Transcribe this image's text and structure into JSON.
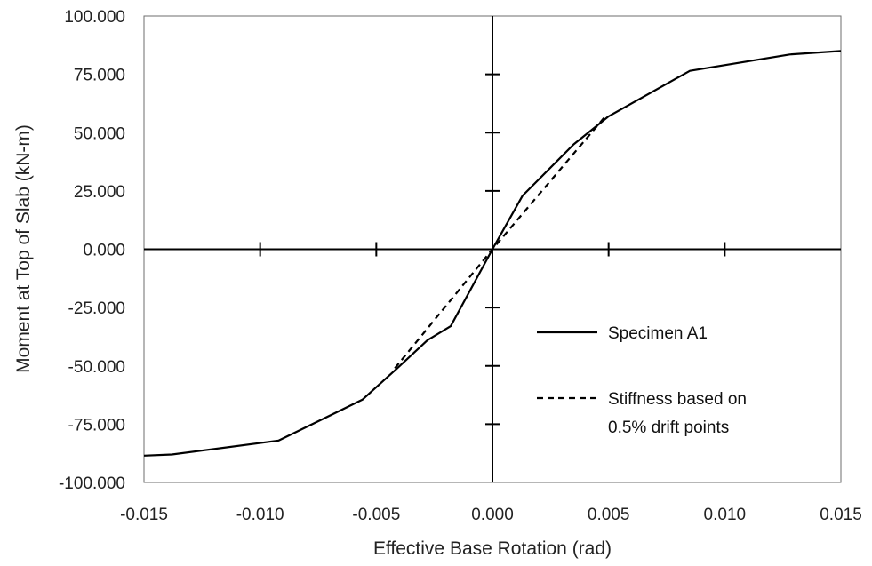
{
  "chart_data": {
    "type": "line",
    "title": "",
    "xlabel": "Effective Base Rotation (rad)",
    "ylabel": "Moment at Top of Slab (kN-m)",
    "xlim": [
      -0.015,
      0.015
    ],
    "ylim": [
      -100,
      100
    ],
    "x_ticks": [
      -0.015,
      -0.01,
      -0.005,
      0.0,
      0.005,
      0.01,
      0.015
    ],
    "x_tick_labels": [
      "-0.015",
      "-0.010",
      "-0.005",
      "0.000",
      "0.005",
      "0.010",
      "0.015"
    ],
    "y_ticks": [
      -100,
      -75,
      -50,
      -25,
      0,
      25,
      50,
      75,
      100
    ],
    "y_tick_labels": [
      "-100.000",
      "-75.000",
      "-50.000",
      "-25.000",
      "0.000",
      "25.000",
      "50.000",
      "75.000",
      "100.000"
    ],
    "grid": false,
    "legend_position": "lower-right",
    "series": [
      {
        "name": "Specimen A1",
        "style": "solid",
        "color": "#000000",
        "x": [
          -0.015,
          -0.0138,
          -0.0092,
          -0.0056,
          -0.0041,
          -0.0028,
          -0.0018,
          0.0,
          0.0013,
          0.0035,
          0.005,
          0.0085,
          0.0128,
          0.015
        ],
        "y": [
          -88.5,
          -88.0,
          -82.0,
          -64.5,
          -51.0,
          -39.0,
          -33.0,
          0.0,
          23.0,
          45.0,
          57.0,
          76.5,
          83.5,
          85.0
        ]
      },
      {
        "name": "Stiffness based on 0.5% drift points",
        "legend_lines": [
          "Stiffness based on",
          "0.5% drift points"
        ],
        "style": "dashed",
        "color": "#000000",
        "x": [
          -0.0042,
          0.0,
          0.0049
        ],
        "y": [
          -51.0,
          0.0,
          57.5
        ]
      }
    ]
  }
}
